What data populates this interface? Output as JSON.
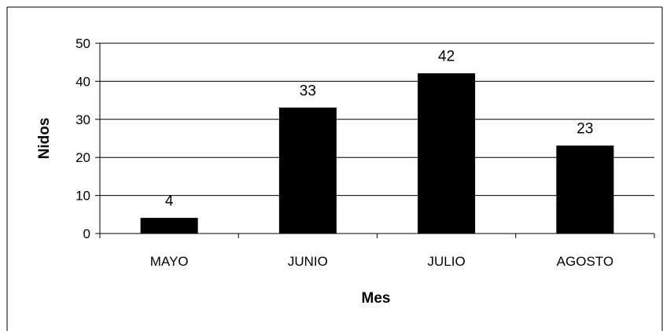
{
  "chart_data": {
    "type": "bar",
    "categories": [
      "MAYO",
      "JUNIO",
      "JULIO",
      "AGOSTO"
    ],
    "values": [
      4,
      33,
      42,
      23
    ],
    "data_labels": [
      "4",
      "33",
      "42",
      "23"
    ],
    "title": "",
    "xlabel": "Mes",
    "ylabel": "Nidos",
    "ylim": [
      0,
      50
    ],
    "yticks": [
      "0",
      "10",
      "20",
      "30",
      "40",
      "50"
    ],
    "grid": true,
    "legend": "none",
    "bar_color": "#000000",
    "grid_color": "#000000"
  }
}
